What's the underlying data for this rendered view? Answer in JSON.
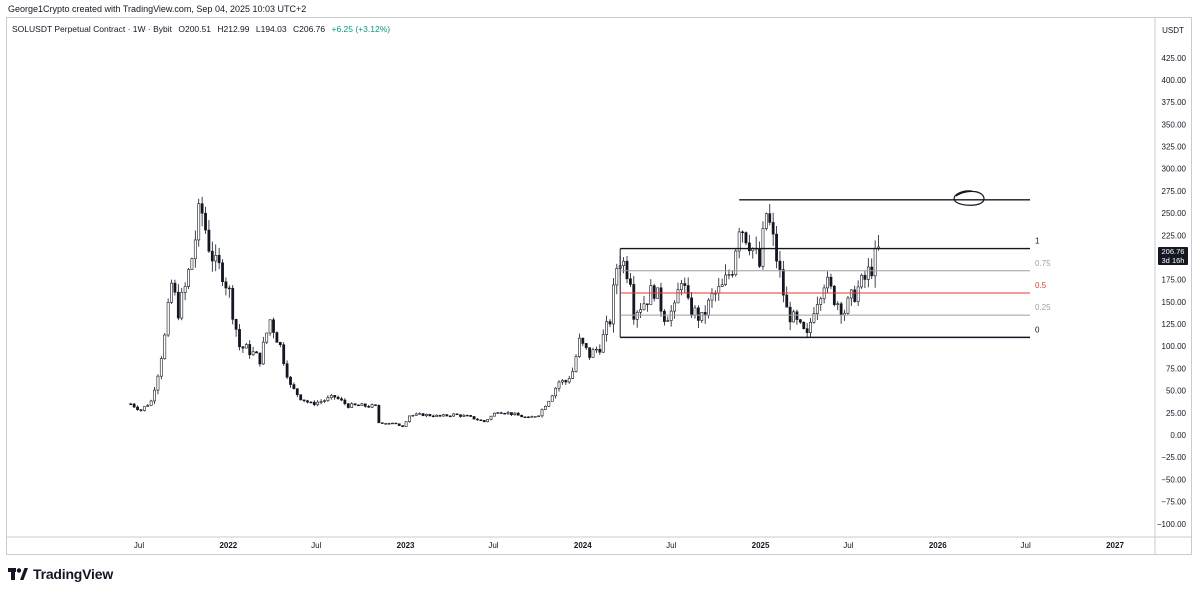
{
  "credit": "George1Crypto created with TradingView.com, Sep 04, 2025 10:03 UTC+2",
  "header": {
    "symbol": "SOLUSDT Perpetual Contract · 1W · Bybit",
    "open": "O200.51",
    "high": "H212.99",
    "low": "L194.03",
    "close": "C206.76",
    "change": "+6.25 (+3.12%)"
  },
  "price_tag": {
    "price": "206.76",
    "countdown": "3d 16h"
  },
  "brand": "TradingView",
  "colors": {
    "candle": "#131722",
    "fib_mid": "#e53935",
    "fib_quarter": "#9e9e9e",
    "up_text": "#089981"
  },
  "chart_data": {
    "type": "candlestick",
    "currency_label": "USDT",
    "y_ticks": [
      "425.00",
      "400.00",
      "375.00",
      "350.00",
      "325.00",
      "300.00",
      "275.00",
      "250.00",
      "225.00",
      "200.00",
      "175.00",
      "150.00",
      "125.00",
      "100.00",
      "75.00",
      "50.00",
      "25.00",
      "0.00",
      "−25.00",
      "−50.00",
      "−75.00",
      "−100.00"
    ],
    "ylim": [
      -100,
      425
    ],
    "x_ticks": [
      {
        "label": "Jul",
        "date": "2021-07-01",
        "bold": false
      },
      {
        "label": "2022",
        "date": "2022-01-01",
        "bold": true
      },
      {
        "label": "Jul",
        "date": "2022-07-01",
        "bold": false
      },
      {
        "label": "2023",
        "date": "2023-01-01",
        "bold": true
      },
      {
        "label": "Jul",
        "date": "2023-07-01",
        "bold": false
      },
      {
        "label": "2024",
        "date": "2024-01-01",
        "bold": true
      },
      {
        "label": "Jul",
        "date": "2024-07-01",
        "bold": false
      },
      {
        "label": "2025",
        "date": "2025-01-01",
        "bold": true
      },
      {
        "label": "Jul",
        "date": "2025-07-01",
        "bold": false
      },
      {
        "label": "2026",
        "date": "2026-01-01",
        "bold": true
      },
      {
        "label": "Jul",
        "date": "2026-07-01",
        "bold": false
      },
      {
        "label": "2027",
        "date": "2027-01-01",
        "bold": true
      }
    ],
    "weekly_closes": [
      {
        "date": "2021-06-14",
        "close": 35
      },
      {
        "date": "2021-07-05",
        "close": 28
      },
      {
        "date": "2021-07-26",
        "close": 38
      },
      {
        "date": "2021-08-09",
        "close": 70
      },
      {
        "date": "2021-08-23",
        "close": 110
      },
      {
        "date": "2021-09-06",
        "close": 170
      },
      {
        "date": "2021-09-20",
        "close": 140
      },
      {
        "date": "2021-10-04",
        "close": 165
      },
      {
        "date": "2021-10-18",
        "close": 200
      },
      {
        "date": "2021-11-01",
        "close": 245
      },
      {
        "date": "2021-11-08",
        "close": 250
      },
      {
        "date": "2021-11-22",
        "close": 215
      },
      {
        "date": "2021-12-06",
        "close": 190
      },
      {
        "date": "2021-12-20",
        "close": 185
      },
      {
        "date": "2022-01-03",
        "close": 160
      },
      {
        "date": "2022-01-24",
        "close": 100
      },
      {
        "date": "2022-02-14",
        "close": 95
      },
      {
        "date": "2022-03-07",
        "close": 85
      },
      {
        "date": "2022-03-28",
        "close": 130
      },
      {
        "date": "2022-04-18",
        "close": 100
      },
      {
        "date": "2022-05-09",
        "close": 55
      },
      {
        "date": "2022-05-30",
        "close": 42
      },
      {
        "date": "2022-06-20",
        "close": 35
      },
      {
        "date": "2022-07-11",
        "close": 38
      },
      {
        "date": "2022-08-08",
        "close": 43
      },
      {
        "date": "2022-09-05",
        "close": 33
      },
      {
        "date": "2022-10-03",
        "close": 33
      },
      {
        "date": "2022-10-31",
        "close": 32
      },
      {
        "date": "2022-11-07",
        "close": 14
      },
      {
        "date": "2022-12-05",
        "close": 13
      },
      {
        "date": "2022-12-26",
        "close": 10
      },
      {
        "date": "2023-01-09",
        "close": 22
      },
      {
        "date": "2023-02-06",
        "close": 23
      },
      {
        "date": "2023-03-13",
        "close": 21
      },
      {
        "date": "2023-04-10",
        "close": 23
      },
      {
        "date": "2023-05-08",
        "close": 21
      },
      {
        "date": "2023-06-12",
        "close": 15
      },
      {
        "date": "2023-07-10",
        "close": 27
      },
      {
        "date": "2023-08-07",
        "close": 24
      },
      {
        "date": "2023-09-11",
        "close": 19
      },
      {
        "date": "2023-10-02",
        "close": 23
      },
      {
        "date": "2023-10-23",
        "close": 40
      },
      {
        "date": "2023-11-13",
        "close": 60
      },
      {
        "date": "2023-11-27",
        "close": 60
      },
      {
        "date": "2023-12-11",
        "close": 72
      },
      {
        "date": "2023-12-25",
        "close": 105
      },
      {
        "date": "2024-01-15",
        "close": 90
      },
      {
        "date": "2024-02-05",
        "close": 100
      },
      {
        "date": "2024-02-26",
        "close": 130
      },
      {
        "date": "2024-03-11",
        "close": 190
      },
      {
        "date": "2024-03-18",
        "close": 200
      },
      {
        "date": "2024-04-08",
        "close": 180
      },
      {
        "date": "2024-04-15",
        "close": 140
      },
      {
        "date": "2024-05-06",
        "close": 150
      },
      {
        "date": "2024-05-27",
        "close": 165
      },
      {
        "date": "2024-06-17",
        "close": 135
      },
      {
        "date": "2024-07-08",
        "close": 140
      },
      {
        "date": "2024-07-22",
        "close": 180
      },
      {
        "date": "2024-08-05",
        "close": 145
      },
      {
        "date": "2024-09-02",
        "close": 130
      },
      {
        "date": "2024-09-23",
        "close": 155
      },
      {
        "date": "2024-10-14",
        "close": 165
      },
      {
        "date": "2024-11-04",
        "close": 190
      },
      {
        "date": "2024-11-18",
        "close": 240
      },
      {
        "date": "2024-12-09",
        "close": 220
      },
      {
        "date": "2024-12-30",
        "close": 190
      },
      {
        "date": "2025-01-13",
        "close": 250
      },
      {
        "date": "2025-01-20",
        "close": 235
      },
      {
        "date": "2025-02-03",
        "close": 200
      },
      {
        "date": "2025-02-24",
        "close": 140
      },
      {
        "date": "2025-03-10",
        "close": 130
      },
      {
        "date": "2025-04-07",
        "close": 110
      },
      {
        "date": "2025-04-21",
        "close": 145
      },
      {
        "date": "2025-05-12",
        "close": 175
      },
      {
        "date": "2025-06-02",
        "close": 155
      },
      {
        "date": "2025-06-23",
        "close": 140
      },
      {
        "date": "2025-07-14",
        "close": 160
      },
      {
        "date": "2025-08-04",
        "close": 175
      },
      {
        "date": "2025-08-18",
        "close": 190
      },
      {
        "date": "2025-09-01",
        "close": 206.76
      }
    ],
    "fib_levels": [
      {
        "label": "1",
        "price": 210,
        "color": "#131722"
      },
      {
        "label": "0.75",
        "price": 185,
        "color": "#9e9e9e"
      },
      {
        "label": "0.5",
        "price": 160,
        "color": "#e53935"
      },
      {
        "label": "0.25",
        "price": 135,
        "color": "#9e9e9e"
      },
      {
        "label": "0",
        "price": 110,
        "color": "#131722"
      }
    ],
    "resistance_price": 265
  }
}
